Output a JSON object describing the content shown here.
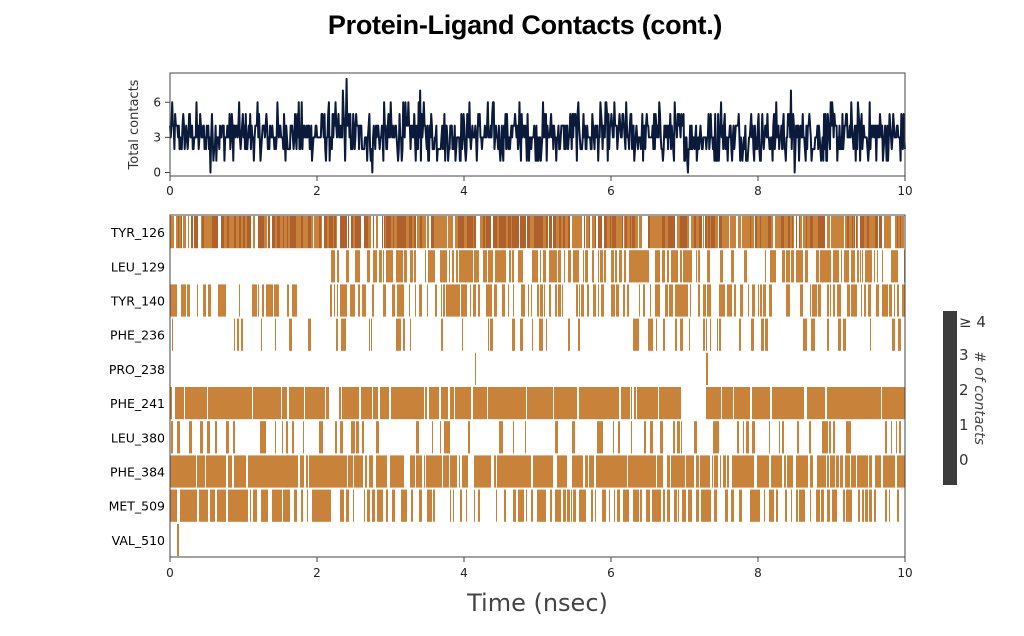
{
  "title": "Protein-Ligand Contacts (cont.)",
  "colors": {
    "contact": "#c8823a",
    "line": "#0b1a3a",
    "colorbar": "#3c3c3c"
  },
  "chart_data": [
    {
      "type": "line",
      "name": "total-contacts",
      "ylabel": "Total contacts",
      "xlim": [
        0,
        10
      ],
      "ylim": [
        -0.3,
        8.5
      ],
      "yticks": [
        "0",
        "3",
        "6"
      ],
      "xticks": [
        "0",
        "2",
        "4",
        "6",
        "8",
        "10"
      ],
      "n_frames": 1000,
      "baseline_mean": 3.2,
      "spikes": [
        [
          2.4,
          8
        ],
        [
          2.35,
          7
        ],
        [
          0.55,
          0
        ],
        [
          2.75,
          0
        ],
        [
          3.4,
          7
        ],
        [
          7.05,
          0
        ],
        [
          8.5,
          0
        ],
        [
          7.5,
          6
        ],
        [
          4.75,
          6
        ],
        [
          8.45,
          7
        ]
      ]
    },
    {
      "type": "heatmap",
      "name": "contacts-timeline",
      "xlabel": "Time (nsec)",
      "xlim": [
        0,
        10
      ],
      "xticks": [
        "0",
        "2",
        "4",
        "6",
        "8",
        "10"
      ],
      "rows": [
        {
          "label": "TYR_126",
          "segments": [
            [
              0,
              10,
              0.82,
              3
            ]
          ]
        },
        {
          "label": "LEU_129",
          "segments": [
            [
              2.2,
              7.1,
              0.55,
              1
            ],
            [
              7.1,
              8.1,
              0.18,
              1
            ],
            [
              8.1,
              10,
              0.55,
              1
            ]
          ]
        },
        {
          "label": "TYR_140",
          "segments": [
            [
              0,
              0.5,
              0.6,
              1
            ],
            [
              0.5,
              10,
              0.35,
              1
            ]
          ]
        },
        {
          "label": "PHE_236",
          "segments": [
            [
              0,
              10,
              0.12,
              1
            ]
          ]
        },
        {
          "label": "PRO_238",
          "segments": [
            [
              4.15,
              4.16,
              1,
              1
            ],
            [
              7.3,
              7.31,
              1,
              1
            ]
          ]
        },
        {
          "label": "PHE_241",
          "segments": [
            [
              0,
              2.15,
              0.9,
              1
            ],
            [
              2.15,
              2.3,
              0.05,
              1
            ],
            [
              2.3,
              6.95,
              0.92,
              1
            ],
            [
              6.95,
              7.3,
              0.1,
              1
            ],
            [
              7.3,
              10,
              0.92,
              1
            ]
          ]
        },
        {
          "label": "LEU_380",
          "segments": [
            [
              0,
              10,
              0.15,
              1
            ]
          ]
        },
        {
          "label": "PHE_384",
          "segments": [
            [
              0,
              1.2,
              0.85,
              1
            ],
            [
              1.2,
              1.6,
              1.0,
              1
            ],
            [
              1.6,
              2.4,
              0.85,
              1
            ],
            [
              2.4,
              4.5,
              0.6,
              1
            ],
            [
              4.5,
              7.0,
              0.82,
              1
            ],
            [
              7.0,
              10,
              0.65,
              1
            ]
          ]
        },
        {
          "label": "MET_509",
          "segments": [
            [
              0,
              1.0,
              0.7,
              1
            ],
            [
              1.0,
              2.4,
              0.55,
              1
            ],
            [
              2.4,
              4.5,
              0.35,
              1
            ],
            [
              4.5,
              7.0,
              0.55,
              1
            ],
            [
              7.0,
              10,
              0.35,
              1
            ]
          ]
        },
        {
          "label": "VAL_510",
          "segments": [
            [
              0.1,
              0.12,
              1,
              1
            ]
          ]
        }
      ]
    }
  ],
  "colorbar": {
    "ticks": [
      "0",
      "1",
      "2",
      "3",
      "≥ 4"
    ],
    "label": "# of contacts"
  }
}
